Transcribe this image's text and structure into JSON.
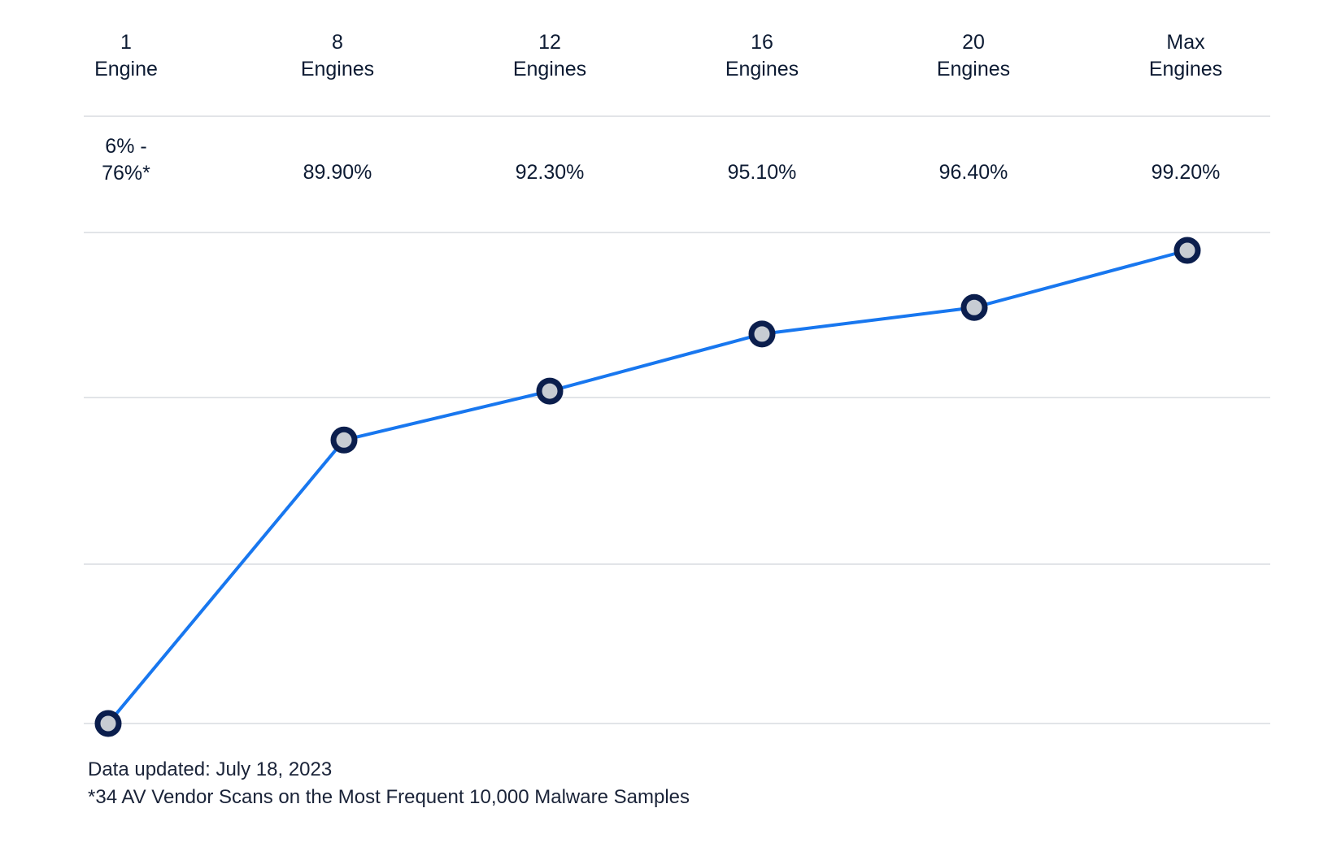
{
  "chart_data": {
    "type": "line",
    "title": "",
    "xlabel": "",
    "ylabel": "",
    "categories": [
      {
        "number": "1",
        "unit": "Engine"
      },
      {
        "number": "8",
        "unit": "Engines"
      },
      {
        "number": "12",
        "unit": "Engines"
      },
      {
        "number": "16",
        "unit": "Engines"
      },
      {
        "number": "20",
        "unit": "Engines"
      },
      {
        "number": "Max",
        "unit": "Engines"
      }
    ],
    "rate_labels": [
      "6% -\n76%*",
      "89.90%",
      "92.30%",
      "95.10%",
      "96.40%",
      "99.20%"
    ],
    "series": [
      {
        "values": [
          76,
          89.9,
          92.3,
          95.1,
          96.4,
          99.2
        ]
      }
    ],
    "colors": {
      "line": "#1877ef",
      "marker_outline": "#0b1e4d",
      "marker_fill": "#c7ccd3",
      "gridline": "#e2e4e8"
    }
  },
  "footnotes": {
    "updated": "Data updated: July 18, 2023",
    "source": "*34 AV Vendor Scans on the Most Frequent 10,000 Malware Samples"
  }
}
